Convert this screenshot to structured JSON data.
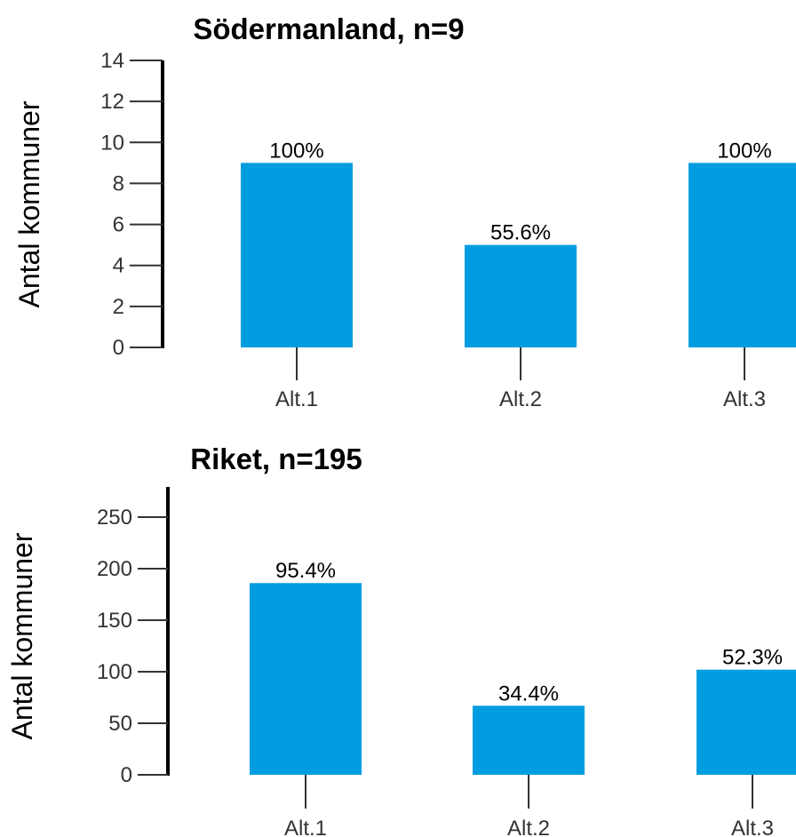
{
  "chart_data": [
    {
      "type": "bar",
      "title": "Södermanland, n=9",
      "ylabel": "Antal kommuner",
      "xlabel": "",
      "ylim": [
        0,
        14
      ],
      "yticks": [
        "0",
        "2",
        "4",
        "6",
        "8",
        "10",
        "12",
        "14"
      ],
      "ytick_values": [
        0,
        2,
        4,
        6,
        8,
        10,
        12,
        14
      ],
      "categories": [
        "Alt.1",
        "Alt.2",
        "Alt.3"
      ],
      "values": [
        9,
        5,
        9
      ],
      "data_labels": [
        "100%",
        "55.6%",
        "100%"
      ],
      "bar_color": "#009de0"
    },
    {
      "type": "bar",
      "title": "Riket, n=195",
      "ylabel": "Antal kommuner",
      "xlabel": "",
      "ylim": [
        0,
        250
      ],
      "yticks": [
        "0",
        "50",
        "100",
        "150",
        "200",
        "250"
      ],
      "ytick_values": [
        0,
        50,
        100,
        150,
        200,
        250
      ],
      "categories": [
        "Alt.1",
        "Alt.2",
        "Alt.3"
      ],
      "values": [
        186,
        67,
        102
      ],
      "data_labels": [
        "95.4%",
        "34.4%",
        "52.3%"
      ],
      "bar_color": "#009de0"
    }
  ]
}
